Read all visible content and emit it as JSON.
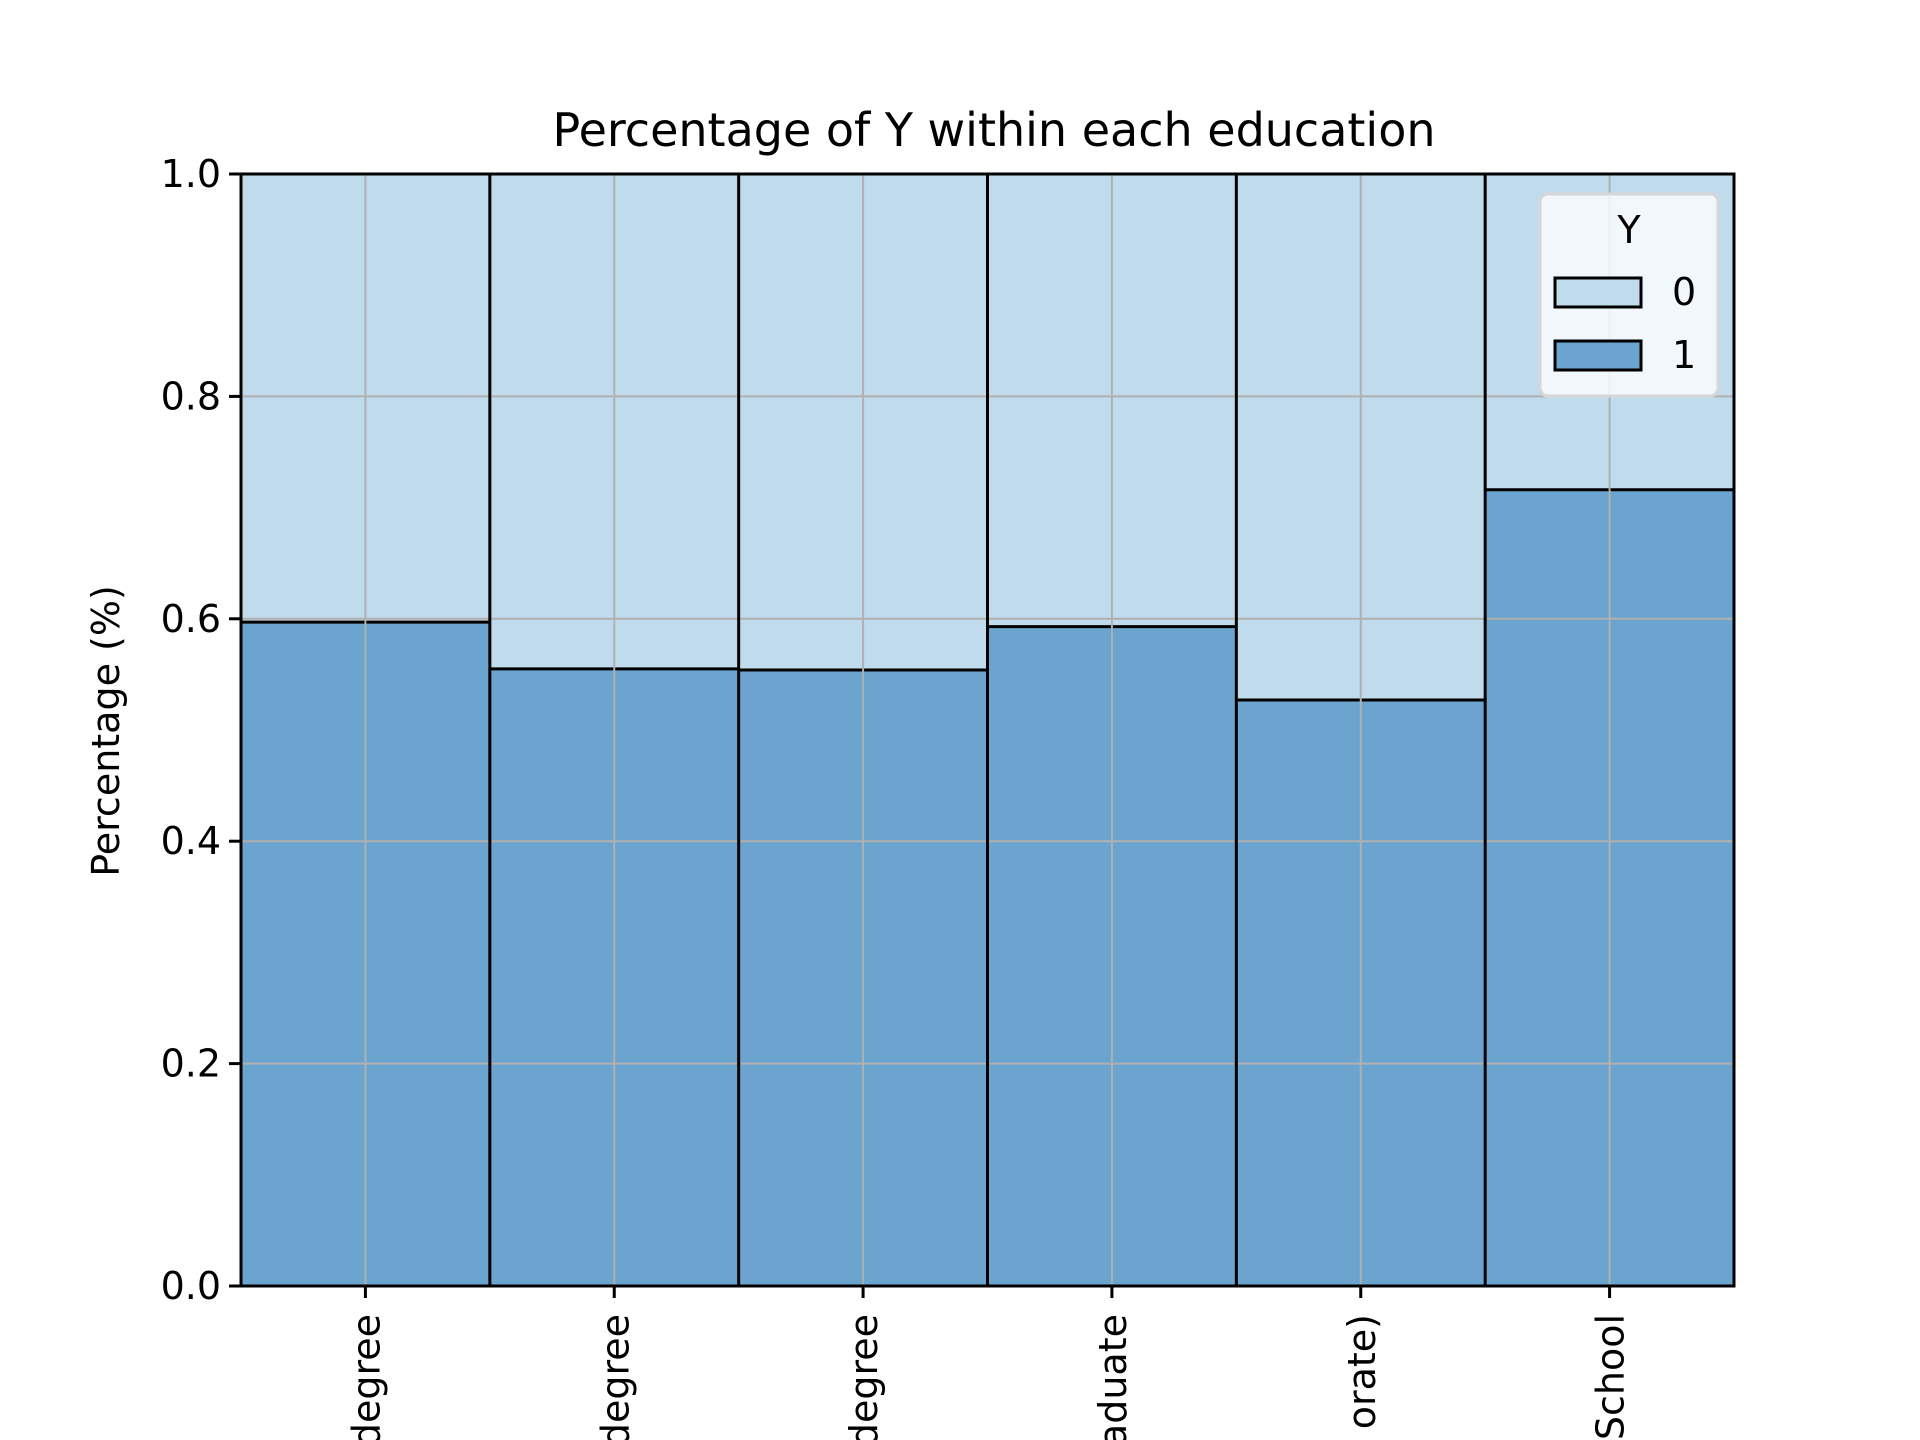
{
  "chart_data": {
    "type": "bar",
    "stacked": true,
    "normalized": true,
    "title": "Percentage of Y within each education",
    "xlabel": "",
    "ylabel": "Percentage (%)",
    "ylim": [
      0,
      1
    ],
    "yticks": [
      "0.0",
      "0.2",
      "0.4",
      "0.6",
      "0.8",
      "1.0"
    ],
    "categories": [
      "degree",
      "degree",
      "degree",
      "aduate",
      "orate)",
      "School"
    ],
    "grid": true,
    "legend": {
      "title": "Y",
      "placement": "top-right",
      "entries": [
        "0",
        "1"
      ]
    },
    "series": [
      {
        "name": "1",
        "color": "#6aa4cf",
        "values": [
          0.597,
          0.555,
          0.554,
          0.593,
          0.527,
          0.716
        ]
      },
      {
        "name": "0",
        "color": "#c0dbec",
        "values": [
          0.403,
          0.445,
          0.446,
          0.407,
          0.473,
          0.284
        ]
      }
    ]
  }
}
